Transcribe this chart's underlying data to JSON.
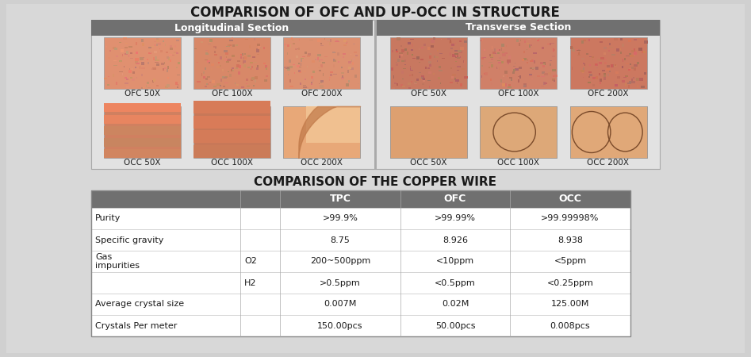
{
  "title1": "COMPARISON OF OFC AND UP-OCC IN STRUCTURE",
  "title2": "COMPARISON OF THE COPPER WIRE",
  "bg_color": "#d0d0d0",
  "header_color": "#707070",
  "header_text_color": "#ffffff",
  "section_headers": [
    "Longitudinal Section",
    "Transverse Section"
  ],
  "image_labels_ofc": [
    "OFC 50X",
    "OFC 100X",
    "OFC 200X",
    "OFC 50X",
    "OFC 100X",
    "OFC 200X"
  ],
  "image_labels_occ": [
    "OCC 50X",
    "OCC 100X",
    "OCC 200X",
    "OCC 50X",
    "OCC 100X",
    "OCC 200X"
  ],
  "table_headers": [
    "",
    "",
    "TPC",
    "OFC",
    "OCC"
  ],
  "table_data": [
    [
      "Purity",
      "",
      ">99.9%",
      ">99.99%",
      ">99.99998%"
    ],
    [
      "Specific gravity",
      "",
      "8.75",
      "8.926",
      "8.938"
    ],
    [
      "Gas\nimpurities",
      "O2",
      "200~500ppm",
      "<10ppm",
      "<5ppm"
    ],
    [
      "",
      "H2",
      ">0.5ppm",
      "<0.5ppm",
      "<0.25ppm"
    ],
    [
      "Average crystal size",
      "",
      "0.007M",
      "0.02M",
      "125.00M"
    ],
    [
      "Crystals Per meter",
      "",
      "150.00pcs",
      "50.00pcs",
      "0.008pcs"
    ]
  ],
  "ofc_long_colors": [
    "#e09070",
    "#d88868",
    "#dc9070"
  ],
  "ofc_trans_colors": [
    "#c87860",
    "#d08068",
    "#cc7860"
  ],
  "occ_long_colors": [
    "#d08060",
    "#c87858",
    "#cc8060"
  ],
  "occ_trans_colors": [
    "#d88868",
    "#cc8060",
    "#d08060"
  ]
}
